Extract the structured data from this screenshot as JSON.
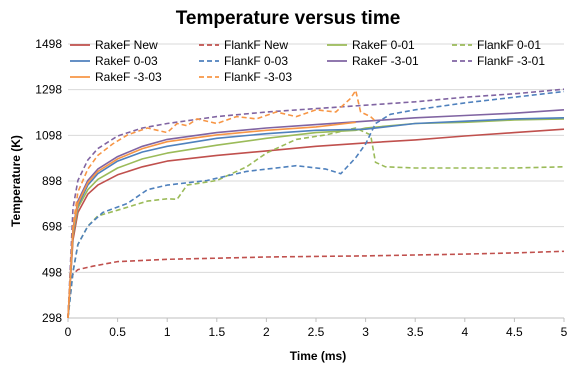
{
  "chart_data": {
    "type": "line",
    "title": "Temperature versus time",
    "xlabel": "Time (ms)",
    "ylabel": "Temperature (K)",
    "xlim": [
      0,
      5
    ],
    "ylim": [
      298,
      1498
    ],
    "x_ticks": [
      "0",
      "0.5",
      "1",
      "1.5",
      "2",
      "2.5",
      "3",
      "3.5",
      "4",
      "4.5",
      "5"
    ],
    "y_ticks": [
      "298",
      "498",
      "698",
      "898",
      "1098",
      "1298",
      "1498"
    ],
    "grid": "horizontal",
    "legend_position": "top",
    "series": [
      {
        "name": "RakeF New",
        "color": "#c0504d",
        "dash": "solid",
        "points": [
          [
            0,
            298
          ],
          [
            0.05,
            640
          ],
          [
            0.1,
            760
          ],
          [
            0.2,
            840
          ],
          [
            0.3,
            880
          ],
          [
            0.5,
            925
          ],
          [
            0.75,
            960
          ],
          [
            1,
            985
          ],
          [
            1.5,
            1010
          ],
          [
            2,
            1030
          ],
          [
            2.5,
            1050
          ],
          [
            3,
            1065
          ],
          [
            3.5,
            1078
          ],
          [
            4,
            1095
          ],
          [
            4.5,
            1110
          ],
          [
            5,
            1125
          ]
        ]
      },
      {
        "name": "FlankF New",
        "color": "#c0504d",
        "dash": "dashed",
        "points": [
          [
            0,
            298
          ],
          [
            0.02,
            450
          ],
          [
            0.05,
            490
          ],
          [
            0.1,
            510
          ],
          [
            0.25,
            525
          ],
          [
            0.5,
            545
          ],
          [
            1,
            555
          ],
          [
            1.5,
            560
          ],
          [
            2,
            565
          ],
          [
            2.5,
            568
          ],
          [
            3,
            570
          ],
          [
            3.5,
            574
          ],
          [
            4,
            578
          ],
          [
            4.5,
            583
          ],
          [
            5,
            590
          ]
        ]
      },
      {
        "name": "RakeF 0-01",
        "color": "#9bbb59",
        "dash": "solid",
        "points": [
          [
            0,
            298
          ],
          [
            0.05,
            660
          ],
          [
            0.1,
            780
          ],
          [
            0.2,
            860
          ],
          [
            0.3,
            905
          ],
          [
            0.5,
            955
          ],
          [
            0.75,
            995
          ],
          [
            1,
            1020
          ],
          [
            1.5,
            1055
          ],
          [
            2,
            1085
          ],
          [
            2.5,
            1110
          ],
          [
            2.9,
            1120
          ],
          [
            3,
            1130
          ],
          [
            3.5,
            1150
          ],
          [
            4,
            1155
          ],
          [
            4.5,
            1165
          ],
          [
            5,
            1170
          ]
        ]
      },
      {
        "name": "FlankF 0-01",
        "color": "#9bbb59",
        "dash": "dashed",
        "points": [
          [
            0,
            298
          ],
          [
            0.05,
            500
          ],
          [
            0.1,
            620
          ],
          [
            0.2,
            700
          ],
          [
            0.3,
            745
          ],
          [
            0.5,
            770
          ],
          [
            0.8,
            810
          ],
          [
            1,
            820
          ],
          [
            1.1,
            818
          ],
          [
            1.2,
            880
          ],
          [
            1.5,
            900
          ],
          [
            1.8,
            960
          ],
          [
            2,
            1020
          ],
          [
            2.3,
            1080
          ],
          [
            2.6,
            1100
          ],
          [
            2.9,
            1130
          ],
          [
            3.05,
            1100
          ],
          [
            3.1,
            980
          ],
          [
            3.2,
            960
          ],
          [
            3.5,
            955
          ],
          [
            4,
            955
          ],
          [
            4.5,
            955
          ],
          [
            5,
            960
          ]
        ]
      },
      {
        "name": "RakeF 0-03",
        "color": "#4f81bd",
        "dash": "solid",
        "points": [
          [
            0,
            298
          ],
          [
            0.05,
            670
          ],
          [
            0.1,
            790
          ],
          [
            0.2,
            880
          ],
          [
            0.3,
            930
          ],
          [
            0.5,
            985
          ],
          [
            0.75,
            1025
          ],
          [
            1,
            1050
          ],
          [
            1.5,
            1085
          ],
          [
            2,
            1105
          ],
          [
            2.5,
            1120
          ],
          [
            3,
            1125
          ],
          [
            3.5,
            1150
          ],
          [
            4,
            1160
          ],
          [
            4.5,
            1170
          ],
          [
            5,
            1175
          ]
        ]
      },
      {
        "name": "FlankF 0-03",
        "color": "#4f81bd",
        "dash": "dashed",
        "points": [
          [
            0,
            298
          ],
          [
            0.05,
            500
          ],
          [
            0.1,
            620
          ],
          [
            0.2,
            700
          ],
          [
            0.35,
            760
          ],
          [
            0.6,
            800
          ],
          [
            0.8,
            860
          ],
          [
            1,
            880
          ],
          [
            1.2,
            890
          ],
          [
            1.4,
            900
          ],
          [
            1.6,
            920
          ],
          [
            1.8,
            940
          ],
          [
            2,
            950
          ],
          [
            2.3,
            965
          ],
          [
            2.6,
            950
          ],
          [
            2.75,
            930
          ],
          [
            2.9,
            1000
          ],
          [
            3,
            1060
          ],
          [
            3.1,
            1150
          ],
          [
            3.25,
            1190
          ],
          [
            3.5,
            1210
          ],
          [
            4,
            1240
          ],
          [
            4.5,
            1265
          ],
          [
            5,
            1290
          ]
        ]
      },
      {
        "name": "RakeF -3-01",
        "color": "#8064a2",
        "dash": "solid",
        "points": [
          [
            0,
            298
          ],
          [
            0.05,
            690
          ],
          [
            0.1,
            810
          ],
          [
            0.2,
            900
          ],
          [
            0.3,
            950
          ],
          [
            0.5,
            1005
          ],
          [
            0.75,
            1050
          ],
          [
            1,
            1080
          ],
          [
            1.5,
            1110
          ],
          [
            2,
            1130
          ],
          [
            2.5,
            1145
          ],
          [
            3,
            1160
          ],
          [
            3.5,
            1175
          ],
          [
            4,
            1185
          ],
          [
            4.5,
            1195
          ],
          [
            5,
            1210
          ]
        ]
      },
      {
        "name": "FlankF -3-01",
        "color": "#8064a2",
        "dash": "dashed",
        "points": [
          [
            0,
            298
          ],
          [
            0.05,
            780
          ],
          [
            0.1,
            900
          ],
          [
            0.2,
            990
          ],
          [
            0.3,
            1040
          ],
          [
            0.5,
            1095
          ],
          [
            0.75,
            1130
          ],
          [
            1,
            1150
          ],
          [
            1.5,
            1180
          ],
          [
            2,
            1200
          ],
          [
            2.5,
            1215
          ],
          [
            3,
            1230
          ],
          [
            3.5,
            1245
          ],
          [
            4,
            1265
          ],
          [
            4.5,
            1280
          ],
          [
            5,
            1300
          ]
        ]
      },
      {
        "name": "RakeF -3-03",
        "color": "#f79646",
        "dash": "solid",
        "points": [
          [
            0,
            298
          ],
          [
            0.05,
            680
          ],
          [
            0.1,
            800
          ],
          [
            0.2,
            890
          ],
          [
            0.3,
            940
          ],
          [
            0.5,
            995
          ],
          [
            0.75,
            1040
          ],
          [
            1,
            1070
          ],
          [
            1.5,
            1100
          ],
          [
            2,
            1120
          ],
          [
            2.5,
            1135
          ],
          [
            2.8,
            1150
          ],
          [
            2.9,
            1155
          ]
        ]
      },
      {
        "name": "FlankF -3-03",
        "color": "#f79646",
        "dash": "dashed",
        "points": [
          [
            0,
            298
          ],
          [
            0.05,
            700
          ],
          [
            0.1,
            850
          ],
          [
            0.2,
            950
          ],
          [
            0.3,
            1010
          ],
          [
            0.45,
            1060
          ],
          [
            0.6,
            1100
          ],
          [
            0.8,
            1130
          ],
          [
            1,
            1110
          ],
          [
            1.1,
            1150
          ],
          [
            1.2,
            1140
          ],
          [
            1.3,
            1170
          ],
          [
            1.5,
            1150
          ],
          [
            1.7,
            1180
          ],
          [
            1.9,
            1170
          ],
          [
            2.1,
            1200
          ],
          [
            2.3,
            1180
          ],
          [
            2.5,
            1210
          ],
          [
            2.7,
            1200
          ],
          [
            2.85,
            1260
          ],
          [
            2.9,
            1295
          ],
          [
            2.95,
            1200
          ],
          [
            3.05,
            1180
          ],
          [
            3.1,
            1160
          ]
        ]
      }
    ]
  }
}
